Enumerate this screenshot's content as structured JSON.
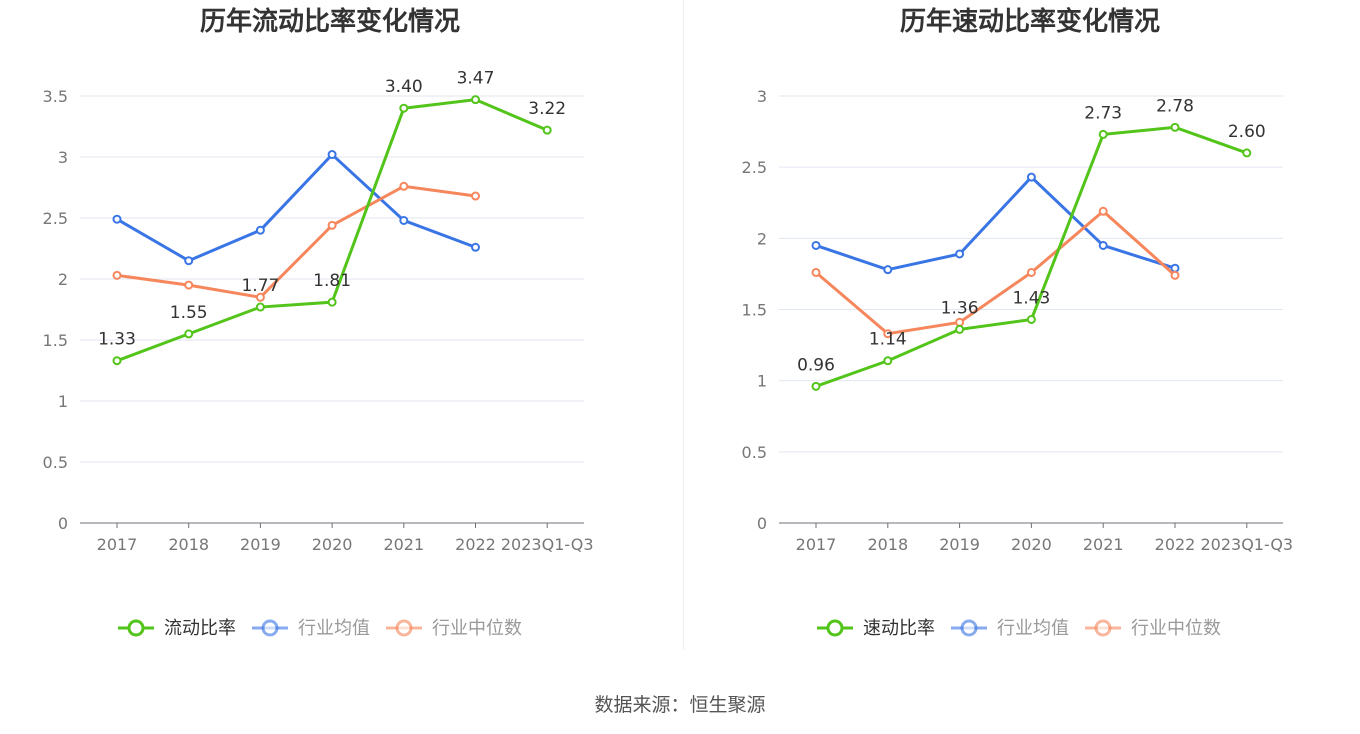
{
  "chart_data": [
    {
      "type": "line",
      "title": "历年流动比率变化情况",
      "categories": [
        "2017",
        "2018",
        "2019",
        "2020",
        "2021",
        "2022",
        "2023Q1-Q3"
      ],
      "ylim": [
        0,
        3.5
      ],
      "yticks": [
        "0",
        "0.5",
        "1",
        "1.5",
        "2",
        "2.5",
        "3",
        "3.5"
      ],
      "ytick_values": [
        0,
        0.5,
        1,
        1.5,
        2,
        2.5,
        3,
        3.5
      ],
      "grid": true,
      "legend_position": "bottom",
      "series": [
        {
          "name": "流动比率",
          "color": "#52c41a",
          "values": [
            1.33,
            1.55,
            1.77,
            1.81,
            3.4,
            3.47,
            3.22
          ],
          "labels": [
            "1.33",
            "1.55",
            "1.77",
            "1.81",
            "3.40",
            "3.47",
            "3.22"
          ]
        },
        {
          "name": "行业均值",
          "color": "#3a75e6",
          "values": [
            2.49,
            2.15,
            2.4,
            3.02,
            2.48,
            2.26,
            null
          ]
        },
        {
          "name": "行业中位数",
          "color": "#f6865c",
          "values": [
            2.03,
            1.95,
            1.85,
            2.44,
            2.76,
            2.68,
            null
          ]
        }
      ]
    },
    {
      "type": "line",
      "title": "历年速动比率变化情况",
      "categories": [
        "2017",
        "2018",
        "2019",
        "2020",
        "2021",
        "2022",
        "2023Q1-Q3"
      ],
      "ylim": [
        0,
        3
      ],
      "yticks": [
        "0",
        "0.5",
        "1",
        "1.5",
        "2",
        "2.5",
        "3"
      ],
      "ytick_values": [
        0,
        0.5,
        1,
        1.5,
        2,
        2.5,
        3
      ],
      "grid": true,
      "legend_position": "bottom",
      "series": [
        {
          "name": "速动比率",
          "color": "#52c41a",
          "values": [
            0.96,
            1.14,
            1.36,
            1.43,
            2.73,
            2.78,
            2.6
          ],
          "labels": [
            "0.96",
            "1.14",
            "1.36",
            "1.43",
            "2.73",
            "2.78",
            "2.60"
          ]
        },
        {
          "name": "行业均值",
          "color": "#3a75e6",
          "values": [
            1.95,
            1.78,
            1.89,
            2.43,
            1.95,
            1.79,
            null
          ]
        },
        {
          "name": "行业中位数",
          "color": "#f6865c",
          "values": [
            1.76,
            1.33,
            1.41,
            1.76,
            2.19,
            1.74,
            null
          ]
        }
      ]
    }
  ],
  "source": "数据来源：恒生聚源"
}
